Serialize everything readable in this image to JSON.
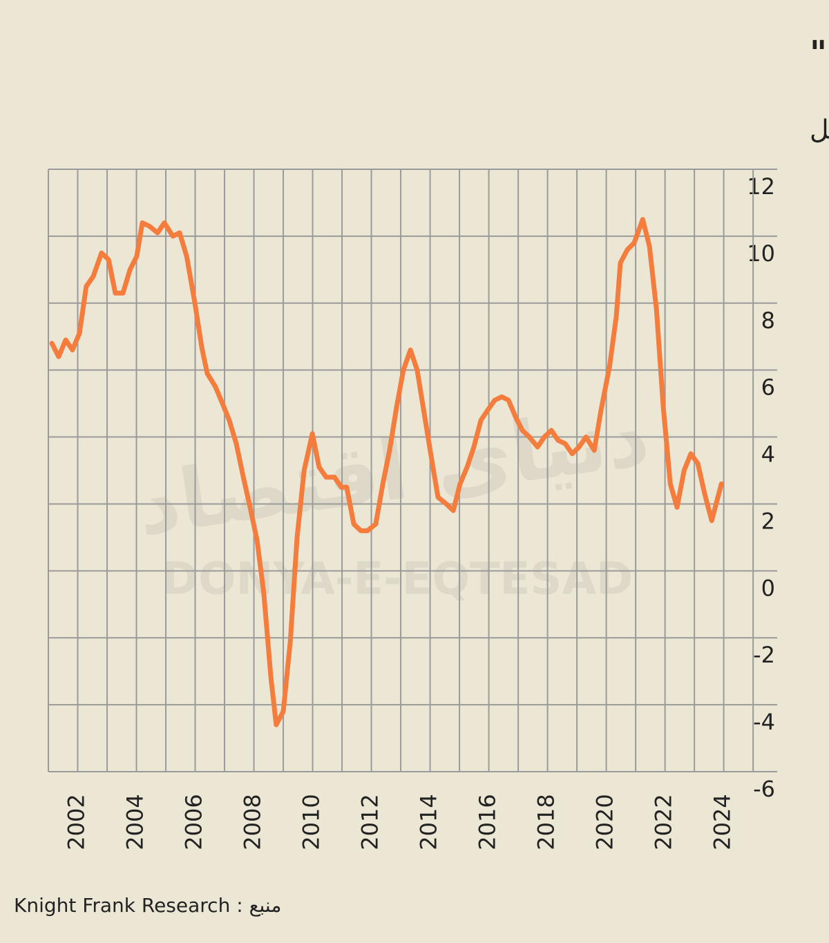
{
  "chart_data": {
    "type": "line",
    "title": "شاخص جهانی قیمت مسکن \" نایت فرانک\"",
    "subtitle": "درصد تغییر سالانه شاخص کل",
    "source": "منبع : Knight Frank Research",
    "watermark": "DONYA-E-EQTESAD",
    "watermark_fa": "دنیای اقتصاد",
    "xlim": [
      2001,
      2025.82
    ],
    "xticks": [
      2002,
      2004,
      2006,
      2008,
      2010,
      2012,
      2014,
      2016,
      2018,
      2020,
      2022,
      2024
    ],
    "xminorticks": [
      2003,
      2005,
      2007,
      2009,
      2011,
      2013,
      2015,
      2017,
      2019,
      2021,
      2023,
      2025
    ],
    "ylim": [
      -6,
      12
    ],
    "yticks": [
      -6,
      -4,
      -2,
      0,
      2,
      4,
      6,
      8,
      10,
      12
    ],
    "grid": true,
    "series": [
      {
        "color": "#f47c3c",
        "x": [
          2001.12,
          2001.35,
          2001.59,
          2001.82,
          2002.06,
          2002.29,
          2002.53,
          2002.81,
          2003.05,
          2003.28,
          2003.54,
          2003.78,
          2004.01,
          2004.2,
          2004.44,
          2004.72,
          2004.95,
          2005.24,
          2005.47,
          2005.71,
          2005.99,
          2006.22,
          2006.41,
          2006.69,
          2006.93,
          2007.16,
          2007.4,
          2007.64,
          2007.87,
          2008.11,
          2008.34,
          2008.58,
          2008.76,
          2009.0,
          2009.24,
          2009.47,
          2009.71,
          2009.99,
          2010.22,
          2010.46,
          2010.74,
          2010.98,
          2011.16,
          2011.4,
          2011.64,
          2011.87,
          2012.15,
          2012.39,
          2012.62,
          2012.86,
          2013.09,
          2013.33,
          2013.56,
          2013.8,
          2014.04,
          2014.27,
          2014.55,
          2014.79,
          2015.02,
          2015.26,
          2015.49,
          2015.73,
          2015.96,
          2016.2,
          2016.44,
          2016.67,
          2016.91,
          2017.14,
          2017.38,
          2017.66,
          2017.89,
          2018.13,
          2018.36,
          2018.6,
          2018.84,
          2019.07,
          2019.31,
          2019.59,
          2019.82,
          2020.11,
          2020.34,
          2020.48,
          2020.72,
          2020.95,
          2021.24,
          2021.47,
          2021.71,
          2021.94,
          2022.18,
          2022.41,
          2022.65,
          2022.88,
          2023.12,
          2023.35,
          2023.59,
          2023.92
        ],
        "values": [
          6.8,
          6.4,
          6.9,
          6.6,
          7.1,
          8.5,
          8.8,
          9.5,
          9.3,
          8.3,
          8.3,
          9.0,
          9.4,
          10.4,
          10.3,
          10.1,
          10.4,
          10.0,
          10.1,
          9.4,
          8.0,
          6.7,
          5.9,
          5.5,
          5.0,
          4.5,
          3.8,
          2.8,
          1.9,
          0.9,
          -0.7,
          -3.2,
          -4.6,
          -4.2,
          -2.1,
          1.0,
          3.0,
          4.1,
          3.1,
          2.8,
          2.8,
          2.5,
          2.5,
          1.4,
          1.2,
          1.2,
          1.4,
          2.6,
          3.6,
          4.9,
          6.0,
          6.6,
          6.0,
          4.7,
          3.4,
          2.2,
          2.0,
          1.8,
          2.6,
          3.1,
          3.7,
          4.5,
          4.8,
          5.1,
          5.2,
          5.1,
          4.6,
          4.2,
          4.0,
          3.7,
          4.0,
          4.2,
          3.9,
          3.8,
          3.5,
          3.7,
          4.0,
          3.6,
          4.8,
          6.1,
          7.6,
          9.2,
          9.6,
          9.8,
          10.5,
          9.7,
          7.8,
          4.9,
          2.6,
          1.9,
          3.0,
          3.5,
          3.2,
          2.3,
          1.5,
          2.6
        ]
      }
    ]
  }
}
